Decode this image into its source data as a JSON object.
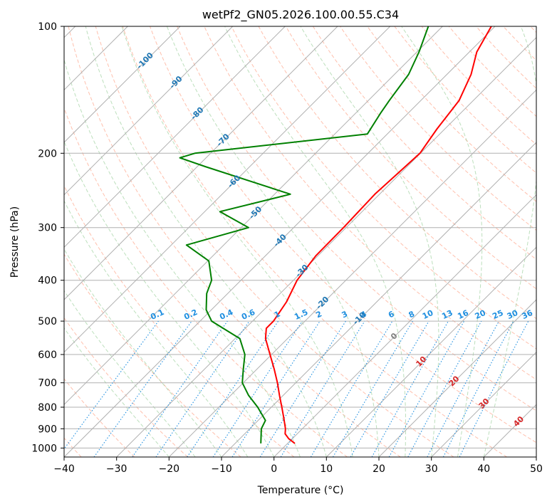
{
  "chart_data": {
    "type": "line",
    "title": "wetPf2_GN05.2026.100.00.55.C34",
    "xlabel": "Temperature (°C)",
    "ylabel": "Pressure (hPa)",
    "xlim": [
      -40,
      50
    ],
    "ylim": [
      1050,
      100
    ],
    "y_scale": "log",
    "skew": 45,
    "x_ticks": [
      "−40",
      "−30",
      "−20",
      "−10",
      "0",
      "10",
      "20",
      "30",
      "40",
      "50"
    ],
    "x_tick_values": [
      -40,
      -30,
      -20,
      -10,
      0,
      10,
      20,
      30,
      40,
      50
    ],
    "y_ticks": [
      "1000",
      "900",
      "800",
      "700",
      "600",
      "500",
      "400",
      "300",
      "200",
      "100"
    ],
    "y_tick_values": [
      1000,
      900,
      800,
      700,
      600,
      500,
      400,
      300,
      200,
      100
    ],
    "grid": true,
    "colors": {
      "temperature": "#ff0000",
      "dewpoint": "#008000",
      "dry_adiabat": "#ff8c69",
      "moist_adiabat": "#8fc98f",
      "mixing_ratio": "#1f8fe0",
      "isotherm_labels": "#1f77b4",
      "grid": "#b0b0b0"
    },
    "series": [
      {
        "role": "temperature",
        "points": [
          {
            "p": 975,
            "t": 1.4
          },
          {
            "p": 950,
            "t": -0.7
          },
          {
            "p": 925,
            "t": -2.3
          },
          {
            "p": 900,
            "t": -3.2
          },
          {
            "p": 850,
            "t": -5.5
          },
          {
            "p": 800,
            "t": -8.0
          },
          {
            "p": 750,
            "t": -10.7
          },
          {
            "p": 700,
            "t": -13.5
          },
          {
            "p": 650,
            "t": -16.7
          },
          {
            "p": 600,
            "t": -20.3
          },
          {
            "p": 550,
            "t": -24.2
          },
          {
            "p": 520,
            "t": -26.0
          },
          {
            "p": 500,
            "t": -26.0
          },
          {
            "p": 450,
            "t": -27.2
          },
          {
            "p": 400,
            "t": -29.3
          },
          {
            "p": 350,
            "t": -30.4
          },
          {
            "p": 300,
            "t": -30.5
          },
          {
            "p": 250,
            "t": -30.9
          },
          {
            "p": 200,
            "t": -30.1
          },
          {
            "p": 175,
            "t": -31.5
          },
          {
            "p": 150,
            "t": -32.7
          },
          {
            "p": 130,
            "t": -35.4
          },
          {
            "p": 115,
            "t": -38.6
          },
          {
            "p": 100,
            "t": -40.7
          }
        ]
      },
      {
        "role": "dewpoint",
        "points": [
          {
            "p": 975,
            "t": -5.1
          },
          {
            "p": 900,
            "t": -7.8
          },
          {
            "p": 860,
            "t": -8.6
          },
          {
            "p": 800,
            "t": -12.6
          },
          {
            "p": 750,
            "t": -16.6
          },
          {
            "p": 700,
            "t": -20.2
          },
          {
            "p": 650,
            "t": -22.6
          },
          {
            "p": 600,
            "t": -25.1
          },
          {
            "p": 550,
            "t": -29.1
          },
          {
            "p": 500,
            "t": -37.8
          },
          {
            "p": 470,
            "t": -41.0
          },
          {
            "p": 430,
            "t": -44.0
          },
          {
            "p": 400,
            "t": -45.6
          },
          {
            "p": 360,
            "t": -49.8
          },
          {
            "p": 330,
            "t": -57.1
          },
          {
            "p": 300,
            "t": -48.6
          },
          {
            "p": 275,
            "t": -57.1
          },
          {
            "p": 250,
            "t": -47.0
          },
          {
            "p": 215,
            "t": -68.5
          },
          {
            "p": 205,
            "t": -75.0
          },
          {
            "p": 200,
            "t": -73.0
          },
          {
            "p": 180,
            "t": -43.8
          },
          {
            "p": 160,
            "t": -45.3
          },
          {
            "p": 150,
            "t": -46.0
          },
          {
            "p": 130,
            "t": -47.3
          },
          {
            "p": 115,
            "t": -49.6
          },
          {
            "p": 100,
            "t": -52.7
          }
        ]
      }
    ],
    "isotherm_labels": [
      "-100",
      "-90",
      "-80",
      "-70",
      "-60",
      "-50",
      "-40",
      "-30",
      "-20",
      "-10"
    ],
    "isotherm_label_values": [
      -100,
      -90,
      -80,
      -70,
      -60,
      -50,
      -40,
      -30,
      -20,
      -10
    ],
    "mixing_ratio_labels": [
      "0.1",
      "0.2",
      "0.4",
      "0.6",
      "1",
      "1.5",
      "2",
      "3",
      "4",
      "6",
      "8",
      "10",
      "13",
      "16",
      "20",
      "25",
      "30",
      "36"
    ],
    "mixing_ratio_values": [
      0.1,
      0.2,
      0.4,
      0.6,
      1,
      1.5,
      2,
      3,
      4,
      6,
      8,
      10,
      13,
      16,
      20,
      25,
      30,
      36
    ],
    "positive_temp_labels": [
      {
        "text": "0",
        "value": 0,
        "color": "#808080"
      },
      {
        "text": "10",
        "value": 10,
        "color": "#d62728"
      },
      {
        "text": "20",
        "value": 20,
        "color": "#d62728"
      },
      {
        "text": "30",
        "value": 30,
        "color": "#d62728"
      },
      {
        "text": "40",
        "value": 40,
        "color": "#d62728"
      }
    ],
    "legend": "none"
  }
}
